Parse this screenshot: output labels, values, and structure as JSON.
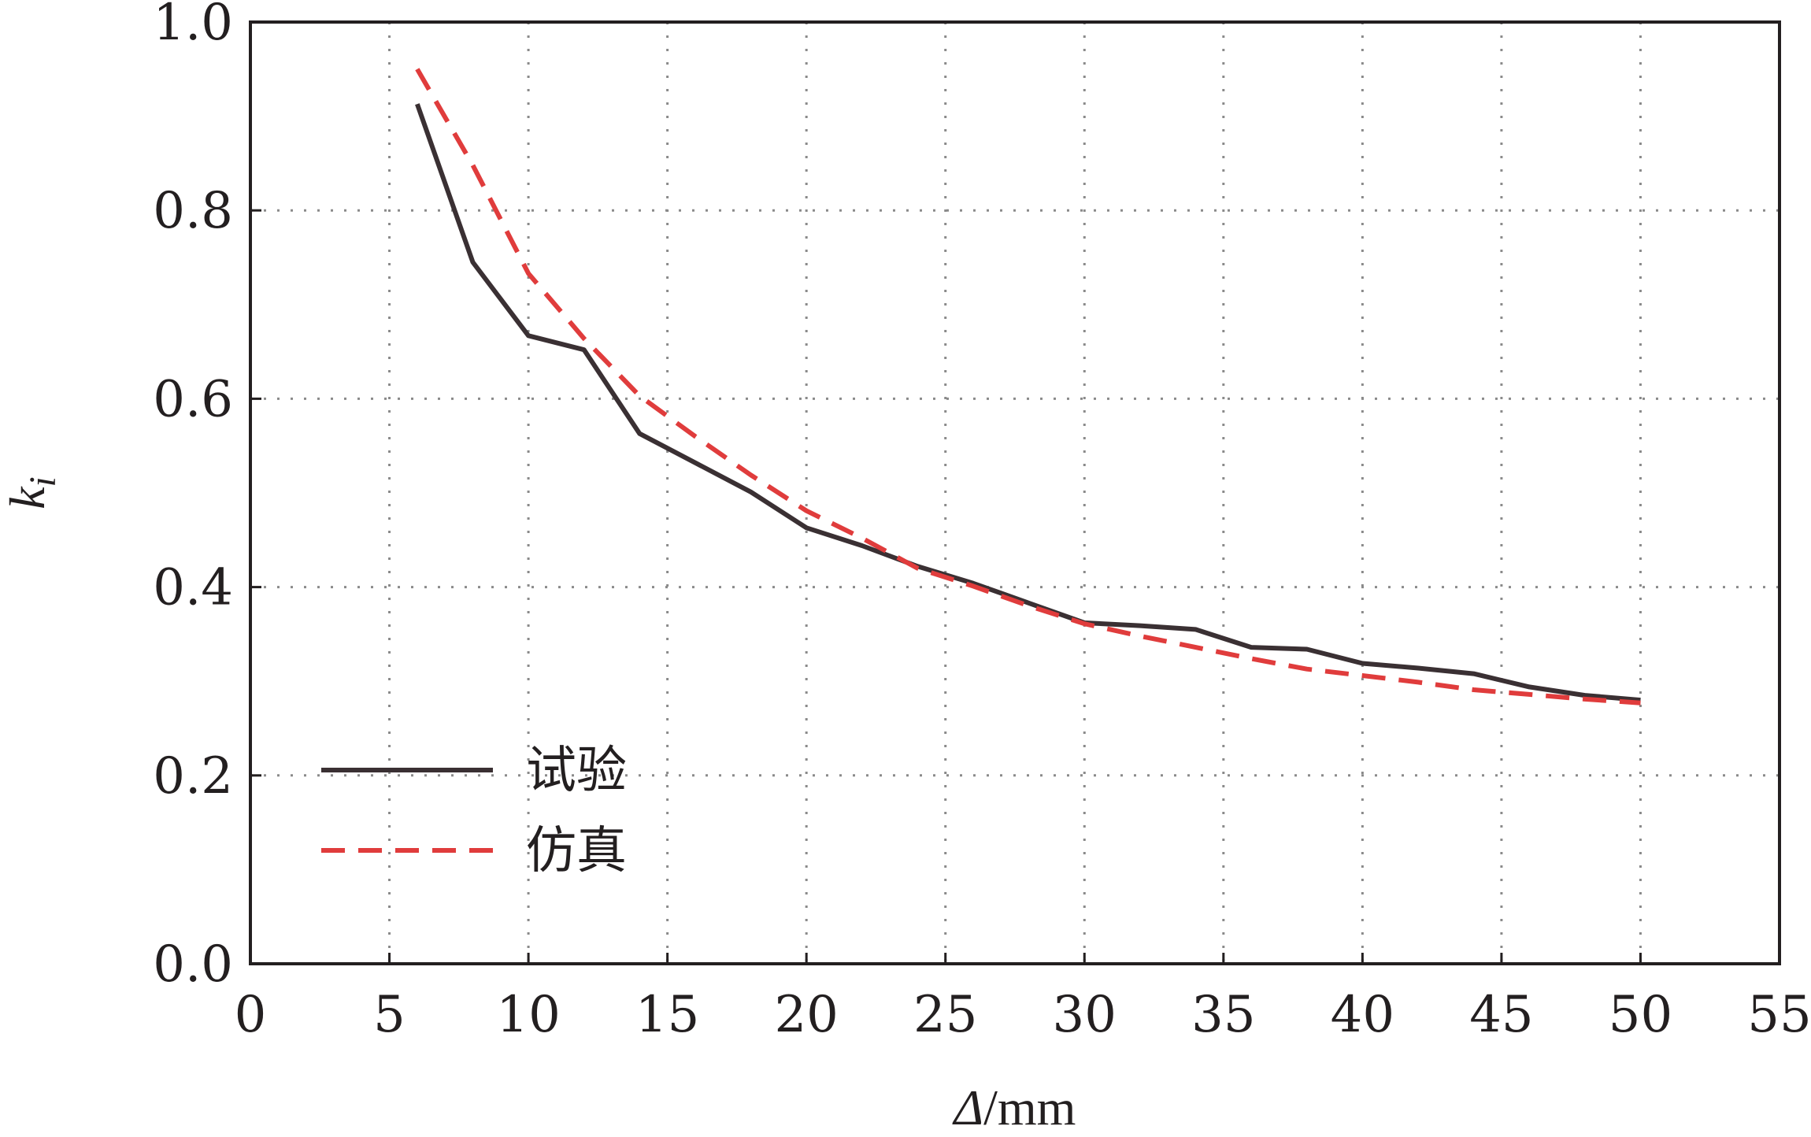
{
  "chart_data": {
    "type": "line",
    "xlabel_symbol": "Δ",
    "xlabel_unit": "/mm",
    "ylabel_base": "k",
    "ylabel_sub": "i",
    "xlim": [
      0,
      55
    ],
    "ylim": [
      0.0,
      1.0
    ],
    "xticks": [
      "0",
      "5",
      "10",
      "15",
      "20",
      "25",
      "30",
      "35",
      "40",
      "45",
      "50",
      "55"
    ],
    "yticks": [
      "0.0",
      "0.2",
      "0.4",
      "0.6",
      "0.8",
      "1.0"
    ],
    "grid": true,
    "legend_position": "lower-left",
    "series": [
      {
        "name": "试验",
        "style": "solid",
        "color": "#3a3033",
        "x": [
          6,
          8,
          10,
          12,
          14,
          16,
          18,
          20,
          22,
          24,
          26,
          28,
          30,
          32,
          34,
          36,
          38,
          40,
          42,
          44,
          46,
          48,
          50
        ],
        "y": [
          0.913,
          0.745,
          0.667,
          0.652,
          0.563,
          0.532,
          0.501,
          0.463,
          0.444,
          0.422,
          0.404,
          0.383,
          0.362,
          0.359,
          0.355,
          0.336,
          0.334,
          0.319,
          0.314,
          0.308,
          0.294,
          0.285,
          0.28
        ]
      },
      {
        "name": "仿真",
        "style": "dashed",
        "color": "#e03c3c",
        "x": [
          6,
          8,
          10,
          12,
          14,
          16,
          18,
          20,
          22,
          24,
          26,
          28,
          30,
          32,
          34,
          36,
          38,
          40,
          42,
          44,
          46,
          48,
          50
        ],
        "y": [
          0.95,
          0.848,
          0.733,
          0.664,
          0.603,
          0.56,
          0.519,
          0.481,
          0.452,
          0.42,
          0.401,
          0.38,
          0.361,
          0.348,
          0.336,
          0.324,
          0.313,
          0.306,
          0.299,
          0.291,
          0.286,
          0.281,
          0.277
        ]
      }
    ]
  }
}
